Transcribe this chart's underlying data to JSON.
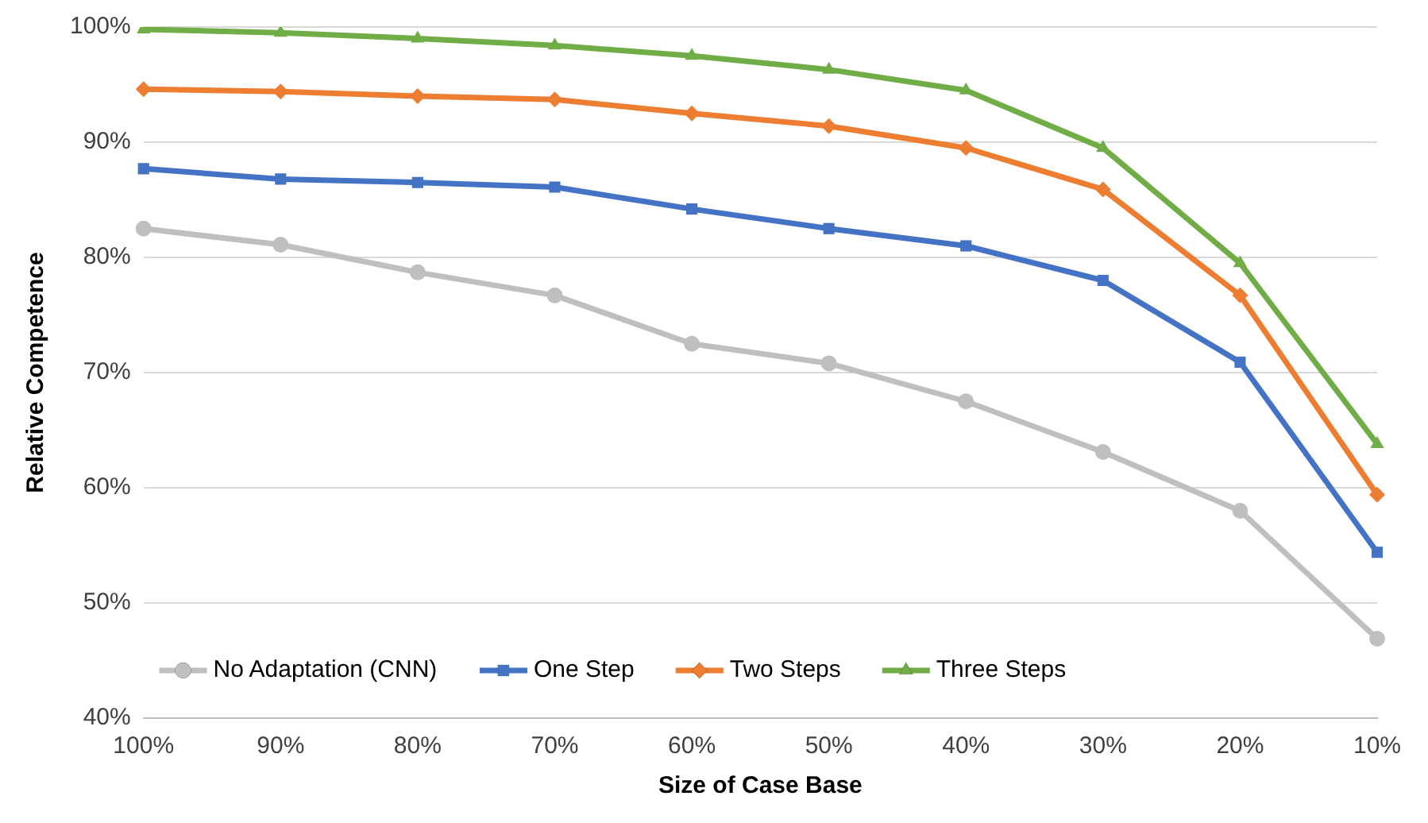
{
  "chart_data": {
    "type": "line",
    "xlabel": "Size of Case Base",
    "ylabel": "Relative Competence",
    "categories": [
      "100%",
      "90%",
      "80%",
      "70%",
      "60%",
      "50%",
      "40%",
      "30%",
      "20%",
      "10%"
    ],
    "series": [
      {
        "name": "No Adaptation (CNN)",
        "color": "#bfbfbf",
        "marker": "circle",
        "values": [
          82.5,
          81.1,
          78.7,
          76.7,
          72.5,
          70.8,
          67.5,
          63.1,
          58.0,
          46.9
        ]
      },
      {
        "name": "One Step",
        "color": "#4472c4",
        "marker": "square",
        "values": [
          87.7,
          86.8,
          86.5,
          86.1,
          84.2,
          82.5,
          81.0,
          78.0,
          70.9,
          54.4
        ]
      },
      {
        "name": "Two Steps",
        "color": "#ed7d31",
        "marker": "diamond",
        "values": [
          94.6,
          94.4,
          94.0,
          93.7,
          92.5,
          91.4,
          89.5,
          85.9,
          76.7,
          59.4
        ]
      },
      {
        "name": "Three Steps",
        "color": "#70ad47",
        "marker": "triangle",
        "values": [
          99.8,
          99.5,
          99.0,
          98.4,
          97.5,
          96.3,
          94.5,
          89.5,
          79.5,
          63.8
        ]
      }
    ],
    "ylim": [
      40,
      100
    ],
    "yticks": [
      {
        "value": 40,
        "label": "40%"
      },
      {
        "value": 50,
        "label": "50%"
      },
      {
        "value": 60,
        "label": "60%"
      },
      {
        "value": 70,
        "label": "70%"
      },
      {
        "value": 80,
        "label": "80%"
      },
      {
        "value": 90,
        "label": "90%"
      },
      {
        "value": 100,
        "label": "100%"
      }
    ],
    "grid": "y",
    "legend": "bottom",
    "line_style": "solid"
  }
}
